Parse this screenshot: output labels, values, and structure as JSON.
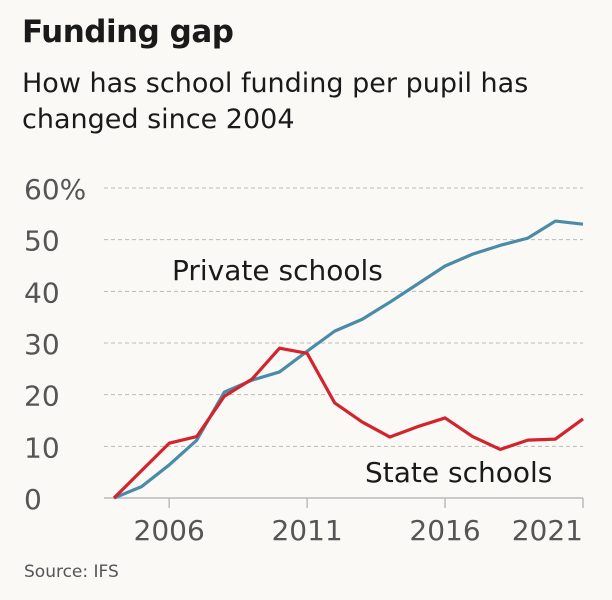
{
  "title": "Funding gap",
  "subtitle": "How has school funding per pupil has changed since 2004",
  "source": "Source: IFS",
  "chart_data": {
    "type": "line",
    "x": [
      2004,
      2005,
      2006,
      2007,
      2008,
      2009,
      2010,
      2011,
      2012,
      2013,
      2014,
      2015,
      2016,
      2017,
      2018,
      2019,
      2020,
      2021
    ],
    "series": [
      {
        "name": "Private schools",
        "color": "#4a8ca8",
        "values": [
          0,
          2.2,
          6.4,
          11.2,
          20.5,
          22.8,
          24.4,
          28.4,
          32.3,
          34.6,
          37.9,
          41.4,
          44.9,
          47.2,
          48.9,
          50.3,
          53.6,
          53.0
        ]
      },
      {
        "name": "State schools",
        "color": "#d3242e",
        "values": [
          0,
          5.3,
          10.6,
          11.9,
          19.7,
          23.0,
          29.0,
          28.0,
          18.4,
          14.7,
          11.8,
          13.8,
          15.5,
          11.9,
          9.4,
          11.2,
          11.4,
          15.3
        ]
      }
    ],
    "ylim": [
      0,
      60
    ],
    "xlim": [
      2004,
      2021
    ],
    "yticks": [
      0,
      10,
      20,
      30,
      40,
      50,
      60
    ],
    "ytick_labels": [
      "0",
      "10",
      "20",
      "30",
      "40",
      "50",
      "60%"
    ],
    "xticks": [
      2006,
      2011,
      2016,
      2021
    ],
    "xtick_labels": [
      "2006",
      "2011",
      "2016",
      "2021"
    ],
    "grid": "horizontal dashed"
  }
}
